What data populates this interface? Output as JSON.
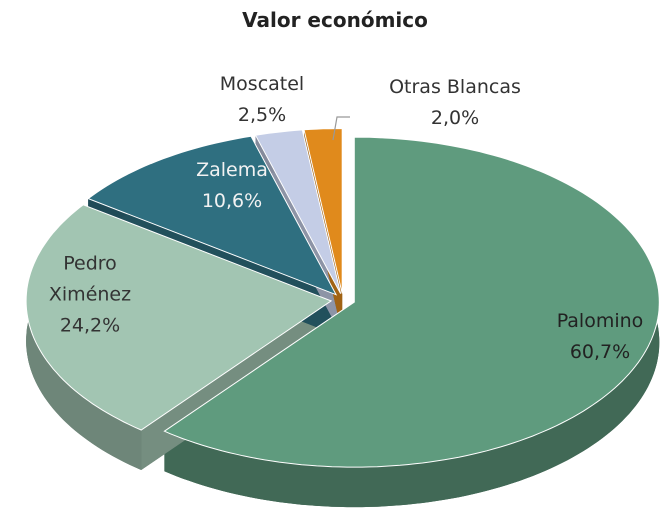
{
  "chart_data": {
    "type": "pie",
    "title": "Valor económico",
    "categories": [
      "Palomino",
      "Pedro Ximénez",
      "Zalema",
      "Moscatel",
      "Otras Blancas"
    ],
    "values": [
      60.7,
      24.2,
      10.6,
      2.5,
      2.0
    ],
    "value_labels": [
      "60,7%",
      "24,2%",
      "10,6%",
      "2,5%",
      "2,0%"
    ],
    "colors": [
      "#5f9b7e",
      "#a2c5b2",
      "#2f6f80",
      "#c4cde6",
      "#e08a1c"
    ]
  }
}
